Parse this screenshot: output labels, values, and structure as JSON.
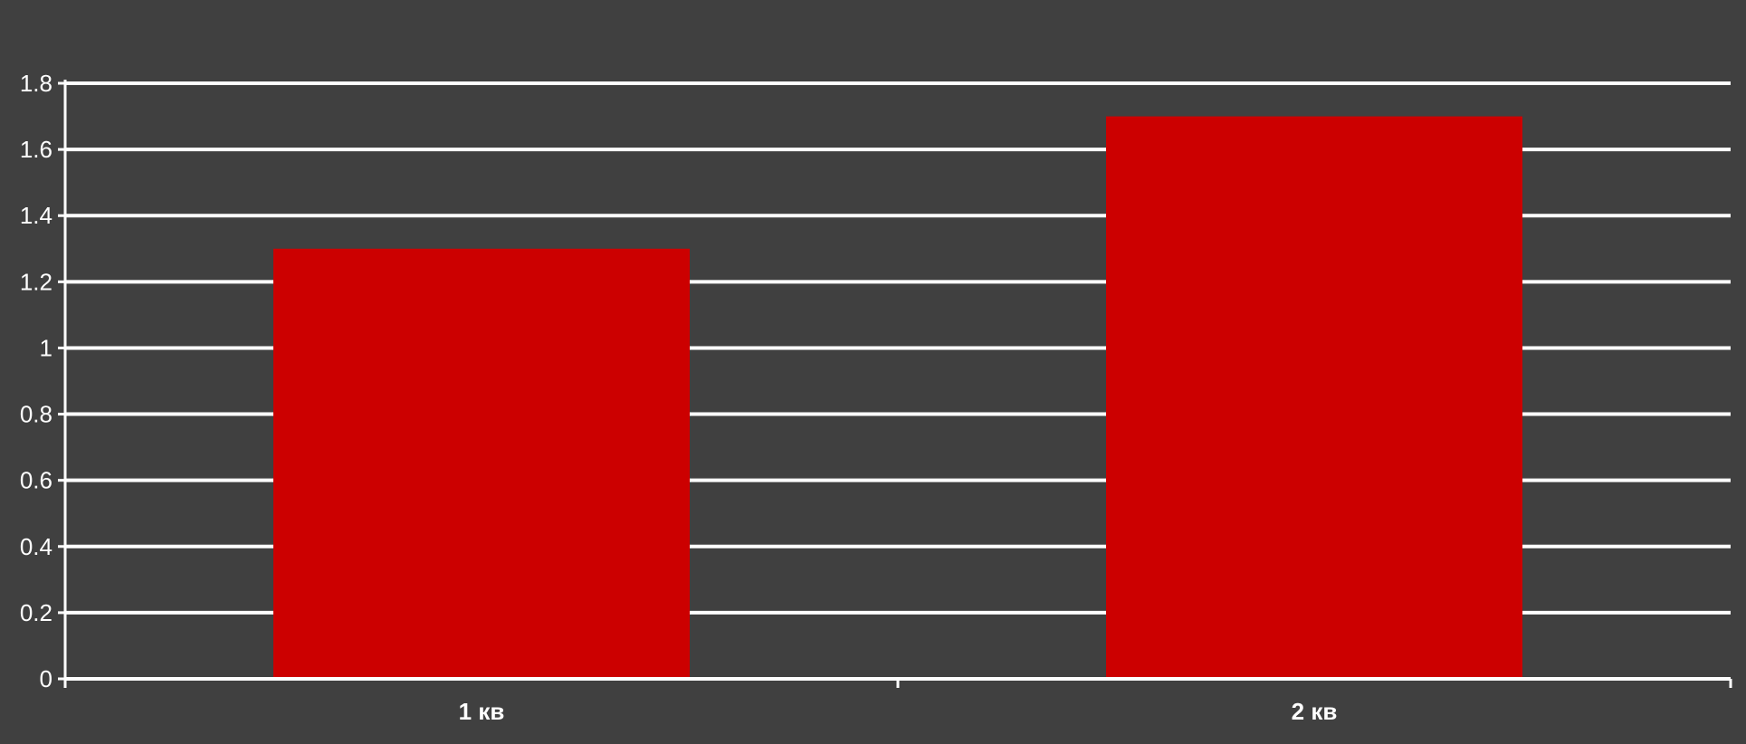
{
  "chart_data": {
    "type": "bar",
    "categories": [
      "1 кв",
      "2 кв"
    ],
    "values": [
      1.3,
      1.7
    ],
    "title": "",
    "xlabel": "",
    "ylabel": "",
    "ylim": [
      0,
      1.8
    ],
    "yticks": [
      0,
      0.2,
      0.4,
      0.6,
      0.8,
      1,
      1.2,
      1.4,
      1.6,
      1.8
    ],
    "ytick_labels": [
      "0",
      "0.2",
      "0.4",
      "0.6",
      "0.8",
      "1",
      "1.2",
      "1.4",
      "1.6",
      "1.8"
    ],
    "grid": true,
    "legend": "none"
  },
  "colors": {
    "background": "#404040",
    "bar": "#cc0000",
    "grid": "#ffffff",
    "text": "#ffffff"
  }
}
